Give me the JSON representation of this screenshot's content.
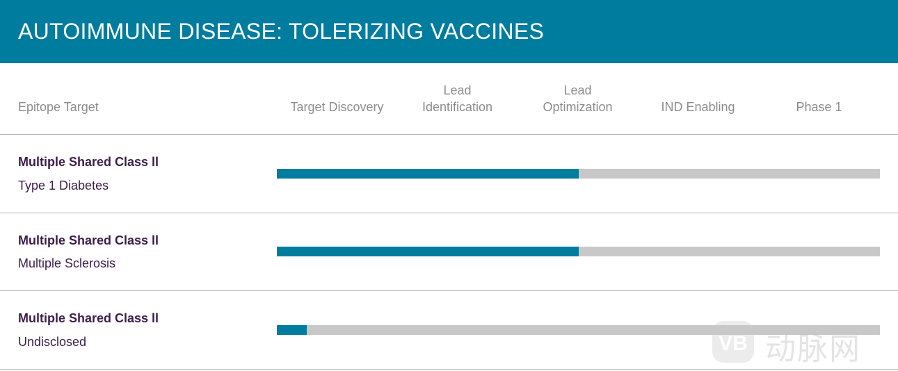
{
  "header": {
    "title": "AUTOIMMUNE DISEASE: TOLERIZING VACCINES"
  },
  "columns": {
    "target": "Epitope Target",
    "stages": [
      {
        "line1": "",
        "line2": "Target Discovery"
      },
      {
        "line1": "Lead",
        "line2": "Identification"
      },
      {
        "line1": "Lead",
        "line2": "Optimization"
      },
      {
        "line1": "",
        "line2": "IND Enabling"
      },
      {
        "line1": "",
        "line2": "Phase 1"
      }
    ]
  },
  "colors": {
    "header": "#007c9e",
    "progress": "#007c9e",
    "track": "#c8c8c8",
    "title_text": "#3b1d4a"
  },
  "chart_data": {
    "type": "bar",
    "orientation": "horizontal",
    "categories": [
      "Target Discovery",
      "Lead Identification",
      "Lead Optimization",
      "IND Enabling",
      "Phase 1"
    ],
    "rows": [
      {
        "target": "Multiple Shared Class ll",
        "indication": "Type 1 Diabetes",
        "progress": 0.5
      },
      {
        "target": "Multiple Shared Class ll",
        "indication": "Multiple Sclerosis",
        "progress": 0.5
      },
      {
        "target": "Multiple Shared Class ll",
        "indication": "Undisclosed",
        "progress": 0.05
      }
    ]
  },
  "watermark": {
    "text": "动脉网"
  }
}
